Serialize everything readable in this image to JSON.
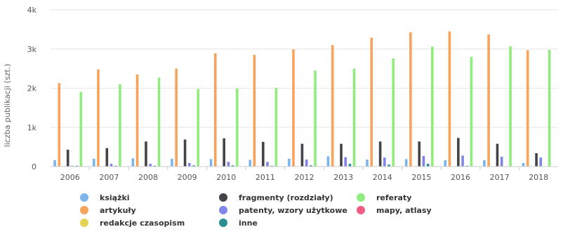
{
  "chart_data": {
    "type": "bar",
    "title": "",
    "xlabel": "",
    "ylabel": "liczba publikacji (szt.)",
    "ylim": [
      0,
      4000
    ],
    "yticks": [
      {
        "value": 0,
        "label": "0"
      },
      {
        "value": 1000,
        "label": "1k"
      },
      {
        "value": 2000,
        "label": "2k"
      },
      {
        "value": 3000,
        "label": "3k"
      },
      {
        "value": 4000,
        "label": "4k"
      }
    ],
    "grid": true,
    "legend_position": "bottom",
    "categories": [
      "2006",
      "2007",
      "2008",
      "2009",
      "2010",
      "2011",
      "2012",
      "2013",
      "2014",
      "2015",
      "2016",
      "2017",
      "2018"
    ],
    "series": [
      {
        "name": "książki",
        "color": "#7cb5ec",
        "values": [
          160,
          200,
          210,
          200,
          190,
          170,
          200,
          260,
          180,
          190,
          160,
          160,
          90
        ]
      },
      {
        "name": "artykuły",
        "color": "#f7a35c",
        "values": [
          2130,
          2480,
          2350,
          2500,
          2890,
          2850,
          2990,
          3100,
          3290,
          3430,
          3450,
          3370,
          2970
        ]
      },
      {
        "name": "redakcje czasopism",
        "color": "#e4d354",
        "values": [
          5,
          5,
          5,
          5,
          5,
          5,
          5,
          5,
          5,
          5,
          5,
          5,
          5
        ]
      },
      {
        "name": "fragmenty (rozdziały)",
        "color": "#434348",
        "values": [
          430,
          470,
          640,
          690,
          720,
          630,
          580,
          580,
          640,
          640,
          730,
          580,
          340
        ]
      },
      {
        "name": "patenty, wzory użytkowe",
        "color": "#8085e9",
        "values": [
          20,
          70,
          70,
          90,
          120,
          120,
          180,
          240,
          230,
          270,
          280,
          250,
          230
        ]
      },
      {
        "name": "inne",
        "color": "#2b908f",
        "values": [
          20,
          20,
          20,
          30,
          30,
          20,
          30,
          70,
          50,
          70,
          20,
          0,
          0
        ]
      },
      {
        "name": "referaty",
        "color": "#90ed7d",
        "values": [
          1900,
          2100,
          2270,
          1980,
          1990,
          2010,
          2450,
          2500,
          2760,
          3060,
          2800,
          3070,
          2980
        ]
      },
      {
        "name": "mapy, atlasy",
        "color": "#f15c80",
        "values": [
          0,
          0,
          0,
          0,
          0,
          0,
          0,
          0,
          0,
          0,
          0,
          0,
          0
        ]
      }
    ],
    "bar_order": [
      "książki",
      "artykuły",
      "redakcje czasopism",
      "fragmenty (rozdziały)",
      "patenty, wzory użytkowe",
      "inne",
      "referaty",
      "mapy, atlasy"
    ],
    "legend_columns": [
      [
        "książki",
        "artykuły",
        "redakcje czasopism"
      ],
      [
        "fragmenty (rozdziały)",
        "patenty, wzory użytkowe",
        "inne"
      ],
      [
        "referaty",
        "mapy, atlasy"
      ]
    ]
  }
}
